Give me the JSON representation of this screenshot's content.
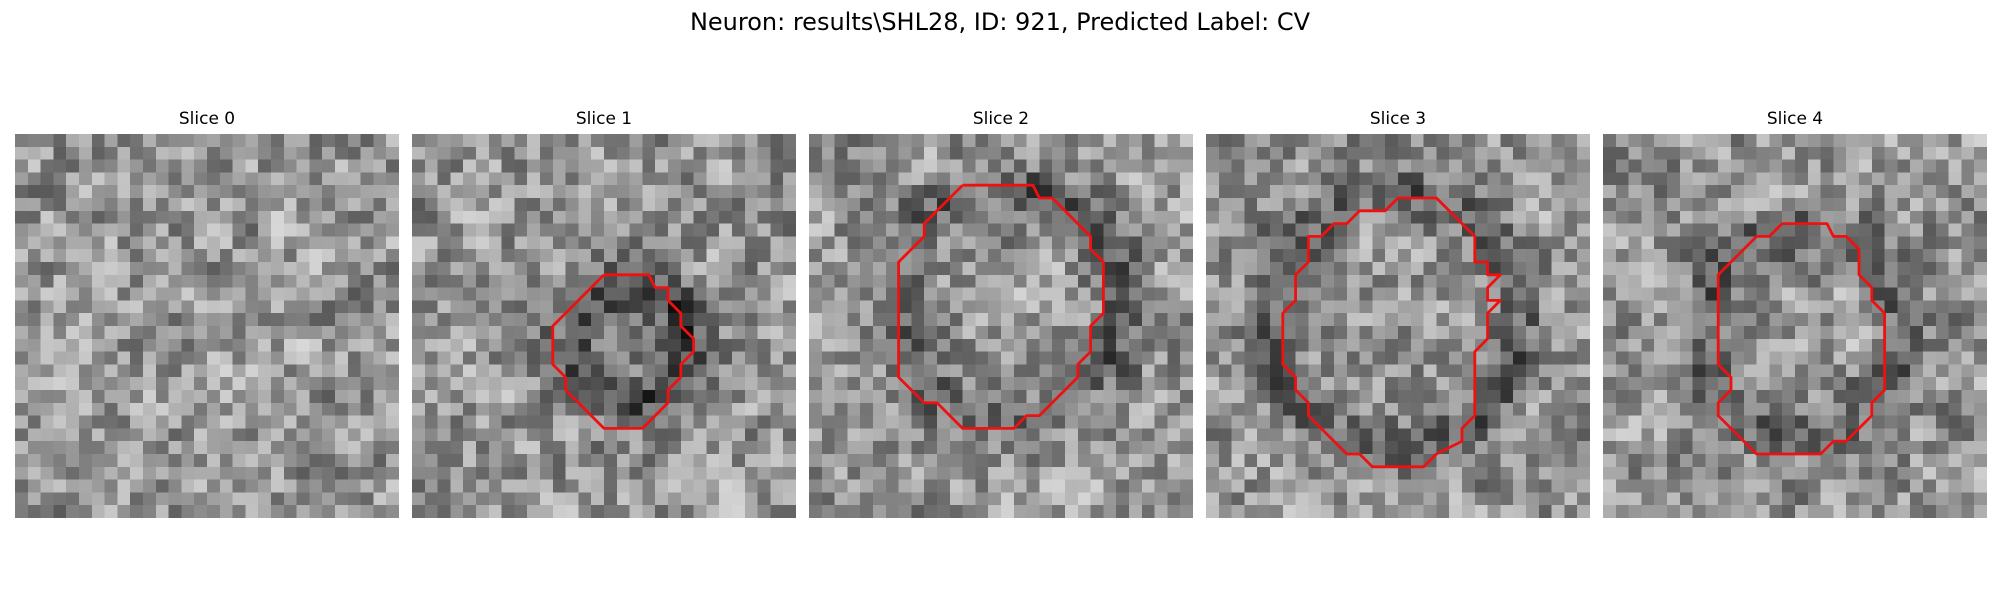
{
  "title": "Neuron: results\\SHL28, ID: 921, Predicted Label: CV",
  "contour_color": "#ee1111",
  "slices": [
    {
      "label": "Slice 0",
      "seed": 11,
      "has_contour": false,
      "contour": []
    },
    {
      "label": "Slice 1",
      "seed": 23,
      "has_contour": true,
      "contour": [
        [
          15,
          11
        ],
        [
          18.5,
          11
        ],
        [
          19,
          12
        ],
        [
          20,
          12
        ],
        [
          20,
          13
        ],
        [
          21,
          14
        ],
        [
          21,
          15
        ],
        [
          22,
          16
        ],
        [
          22,
          17
        ],
        [
          21,
          18
        ],
        [
          21,
          19
        ],
        [
          20,
          20
        ],
        [
          20,
          21
        ],
        [
          19,
          22
        ],
        [
          18,
          23
        ],
        [
          15,
          23
        ],
        [
          14,
          22
        ],
        [
          13,
          21
        ],
        [
          12,
          20
        ],
        [
          12,
          19
        ],
        [
          11,
          18
        ],
        [
          11,
          15
        ],
        [
          12,
          14
        ],
        [
          13,
          13
        ],
        [
          14,
          12
        ],
        [
          15,
          11
        ]
      ]
    },
    {
      "label": "Slice 2",
      "seed": 37,
      "has_contour": true,
      "contour": [
        [
          12,
          4
        ],
        [
          17.5,
          4
        ],
        [
          18,
          5
        ],
        [
          19,
          5
        ],
        [
          20,
          6
        ],
        [
          21,
          7
        ],
        [
          22,
          8
        ],
        [
          22,
          9
        ],
        [
          23,
          10
        ],
        [
          23,
          14
        ],
        [
          22,
          15
        ],
        [
          22,
          17
        ],
        [
          21,
          18
        ],
        [
          21,
          19
        ],
        [
          20,
          20
        ],
        [
          19,
          21
        ],
        [
          18,
          22
        ],
        [
          17,
          22
        ],
        [
          16,
          23
        ],
        [
          12,
          23
        ],
        [
          11,
          22
        ],
        [
          10,
          21
        ],
        [
          9,
          21
        ],
        [
          8,
          20
        ],
        [
          7,
          19
        ],
        [
          7,
          10
        ],
        [
          8,
          9
        ],
        [
          9,
          8
        ],
        [
          9,
          7
        ],
        [
          10,
          6
        ],
        [
          11,
          5
        ],
        [
          12,
          4
        ]
      ]
    },
    {
      "label": "Slice 3",
      "seed": 53,
      "has_contour": true,
      "contour": [
        [
          15,
          5
        ],
        [
          18,
          5
        ],
        [
          19,
          6
        ],
        [
          20,
          7
        ],
        [
          21,
          8
        ],
        [
          21,
          10
        ],
        [
          22,
          10
        ],
        [
          22,
          11
        ],
        [
          23,
          11
        ],
        [
          22,
          12
        ],
        [
          22,
          13
        ],
        [
          23,
          13
        ],
        [
          22,
          14
        ],
        [
          22,
          16
        ],
        [
          21,
          17
        ],
        [
          21,
          22
        ],
        [
          20,
          23
        ],
        [
          20,
          24
        ],
        [
          18,
          25
        ],
        [
          17,
          26
        ],
        [
          13,
          26
        ],
        [
          12,
          25
        ],
        [
          11,
          25
        ],
        [
          10,
          24
        ],
        [
          9,
          23
        ],
        [
          8,
          22
        ],
        [
          8,
          21
        ],
        [
          7,
          20
        ],
        [
          7,
          19
        ],
        [
          6,
          18
        ],
        [
          6,
          14
        ],
        [
          7,
          13
        ],
        [
          7,
          11
        ],
        [
          8,
          10
        ],
        [
          8,
          8
        ],
        [
          9,
          8
        ],
        [
          10,
          7
        ],
        [
          11,
          7
        ],
        [
          12,
          6
        ],
        [
          14,
          6
        ],
        [
          15,
          5
        ]
      ]
    },
    {
      "label": "Slice 4",
      "seed": 71,
      "has_contour": true,
      "contour": [
        [
          15,
          7
        ],
        [
          17.5,
          7
        ],
        [
          18,
          8
        ],
        [
          19,
          8
        ],
        [
          20,
          9
        ],
        [
          20,
          11
        ],
        [
          21,
          12
        ],
        [
          21,
          13
        ],
        [
          22,
          14
        ],
        [
          22,
          20
        ],
        [
          21,
          21
        ],
        [
          21,
          22
        ],
        [
          20,
          23
        ],
        [
          19,
          24
        ],
        [
          18,
          24
        ],
        [
          17,
          25
        ],
        [
          12,
          25
        ],
        [
          11,
          24
        ],
        [
          10,
          23
        ],
        [
          9,
          22
        ],
        [
          9,
          21
        ],
        [
          10,
          20
        ],
        [
          10,
          19
        ],
        [
          9,
          18
        ],
        [
          9,
          11
        ],
        [
          10,
          10
        ],
        [
          11,
          9
        ],
        [
          12,
          8
        ],
        [
          13,
          8
        ],
        [
          14,
          7
        ],
        [
          15,
          7
        ]
      ]
    }
  ]
}
